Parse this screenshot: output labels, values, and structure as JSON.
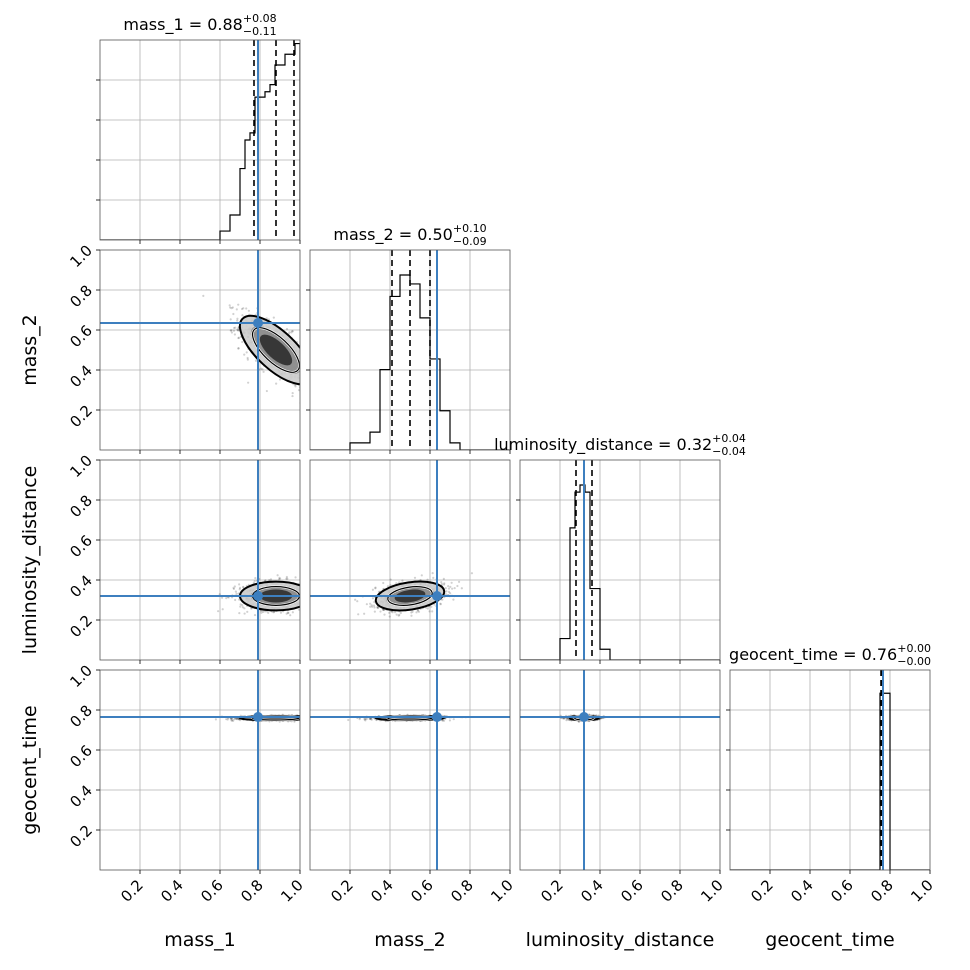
{
  "chart_data": {
    "type": "corner",
    "parameters": [
      "mass_1",
      "mass_2",
      "luminosity_distance",
      "geocent_time"
    ],
    "axis_range": [
      0,
      1
    ],
    "tick_labels": [
      "0.2",
      "0.4",
      "0.6",
      "0.8",
      "1.0"
    ],
    "grid": true,
    "truth_color": "#3d7fbf",
    "truths": [
      0.79,
      0.635,
      0.32,
      0.765
    ],
    "titles": [
      {
        "name": "mass_1",
        "median": "0.88",
        "plus": "+0.08",
        "minus": "−0.11"
      },
      {
        "name": "mass_2",
        "median": "0.50",
        "plus": "+0.10",
        "minus": "−0.09"
      },
      {
        "name": "luminosity_distance",
        "median": "0.32",
        "plus": "+0.04",
        "minus": "−0.04"
      },
      {
        "name": "geocent_time",
        "median": "0.76",
        "plus": "+0.00",
        "minus": "−0.00"
      }
    ],
    "quantiles": [
      [
        0.77,
        0.88,
        0.97
      ],
      [
        0.41,
        0.5,
        0.6
      ],
      [
        0.28,
        0.32,
        0.36
      ],
      [
        0.755,
        0.76,
        0.762
      ]
    ],
    "histograms": [
      {
        "edges": [
          0.6,
          0.65,
          0.7,
          0.725,
          0.75,
          0.775,
          0.8,
          0.825,
          0.85,
          0.875,
          0.9,
          0.925,
          0.95,
          0.975,
          1.0
        ],
        "heights": [
          0.05,
          0.14,
          0.4,
          0.56,
          0.6,
          0.8,
          0.8,
          0.83,
          0.87,
          0.98,
          0.98,
          1.04,
          1.04,
          1.1
        ]
      },
      {
        "edges": [
          0.2,
          0.3,
          0.35,
          0.4,
          0.45,
          0.5,
          0.55,
          0.6,
          0.65,
          0.7,
          0.75
        ],
        "heights": [
          0.04,
          0.1,
          0.45,
          0.86,
          0.98,
          0.93,
          0.74,
          0.51,
          0.22,
          0.04
        ]
      },
      {
        "edges": [
          0.2,
          0.25,
          0.275,
          0.3,
          0.325,
          0.35,
          0.4,
          0.45
        ],
        "heights": [
          0.12,
          0.74,
          0.94,
          0.98,
          0.94,
          0.4,
          0.06
        ]
      },
      {
        "edges": [
          0.75,
          0.77,
          0.8
        ],
        "heights": [
          0.99,
          0.99
        ]
      }
    ]
  }
}
